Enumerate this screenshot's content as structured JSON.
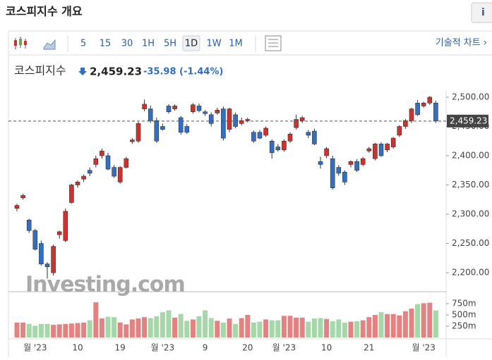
{
  "header": {
    "title": "코스피지수 개요",
    "button": "i"
  },
  "toolbar": {
    "intervals": [
      "5",
      "15",
      "30",
      "1H",
      "5H",
      "1D",
      "1W",
      "1M"
    ],
    "tech_chart": "기술적 차트 ›"
  },
  "quote": {
    "name": "코스피지수",
    "price": "2,459.23",
    "change": "-35.98",
    "change_pct": "(-1.44%)"
  },
  "chart_data": {
    "type": "candlestick",
    "watermark": "Investing.com",
    "up_color": "#d0312d",
    "down_color": "#2f6fc4",
    "vol_up_color": "#e48282",
    "vol_down_color": "#a6d7a8",
    "categories": [
      null,
      null,
      null,
      "월 '23",
      null,
      null,
      null,
      null,
      null,
      null,
      "10",
      null,
      null,
      null,
      null,
      null,
      null,
      "19",
      null,
      null,
      null,
      null,
      null,
      null,
      "월 '23",
      null,
      null,
      null,
      null,
      null,
      null,
      "9",
      null,
      null,
      null,
      null,
      null,
      null,
      "20",
      null,
      null,
      null,
      null,
      null,
      "월 '23",
      null,
      null,
      null,
      null,
      null,
      null,
      "10",
      null,
      null,
      null,
      null,
      null,
      null,
      "21",
      null,
      null,
      null,
      null,
      null,
      null,
      null,
      null,
      "월 '23",
      null,
      null
    ],
    "open": [
      2310,
      2328,
      2290,
      2272,
      2250,
      2215,
      2200,
      2265,
      2255,
      2320,
      2350,
      2360,
      2375,
      2385,
      2400,
      2400,
      2380,
      2355,
      2380,
      2424,
      2425,
      2480,
      2480,
      2460,
      2450,
      2485,
      2480,
      2465,
      2450,
      2475,
      2485,
      2475,
      2470,
      2473,
      2480,
      2445,
      2470,
      2455,
      2460,
      2440,
      2440,
      2435,
      2425,
      2415,
      2410,
      2425,
      2448,
      2460,
      2440,
      2442,
      2390,
      2400,
      2395,
      2380,
      2372,
      2385,
      2390,
      2385,
      2408,
      2395,
      2420,
      2410,
      2415,
      2435,
      2450,
      2460,
      2490,
      2485,
      2490,
      2490
    ],
    "high": [
      2318,
      2335,
      2292,
      2275,
      2255,
      2218,
      2248,
      2272,
      2310,
      2352,
      2358,
      2368,
      2380,
      2400,
      2412,
      2405,
      2384,
      2382,
      2398,
      2430,
      2458,
      2496,
      2486,
      2465,
      2455,
      2488,
      2488,
      2468,
      2454,
      2490,
      2489,
      2478,
      2474,
      2482,
      2484,
      2482,
      2474,
      2465,
      2465,
      2443,
      2444,
      2450,
      2428,
      2420,
      2428,
      2440,
      2470,
      2468,
      2444,
      2446,
      2398,
      2415,
      2400,
      2384,
      2375,
      2392,
      2394,
      2398,
      2415,
      2422,
      2423,
      2422,
      2432,
      2452,
      2463,
      2482,
      2495,
      2492,
      2502,
      2494
    ],
    "low": [
      2305,
      2325,
      2268,
      2238,
      2212,
      2190,
      2195,
      2258,
      2252,
      2318,
      2345,
      2355,
      2365,
      2380,
      2395,
      2375,
      2362,
      2352,
      2378,
      2420,
      2422,
      2476,
      2456,
      2422,
      2443,
      2472,
      2477,
      2436,
      2437,
      2472,
      2474,
      2468,
      2450,
      2470,
      2426,
      2440,
      2447,
      2452,
      2457,
      2422,
      2428,
      2432,
      2395,
      2407,
      2407,
      2422,
      2445,
      2456,
      2430,
      2418,
      2378,
      2396,
      2342,
      2366,
      2350,
      2380,
      2372,
      2382,
      2405,
      2392,
      2398,
      2406,
      2412,
      2432,
      2446,
      2456,
      2468,
      2482,
      2487,
      2456
    ],
    "close": [
      2315,
      2332,
      2272,
      2240,
      2215,
      2210,
      2245,
      2270,
      2305,
      2350,
      2355,
      2365,
      2370,
      2395,
      2408,
      2377,
      2365,
      2380,
      2395,
      2427,
      2455,
      2488,
      2460,
      2425,
      2445,
      2475,
      2485,
      2440,
      2440,
      2487,
      2477,
      2472,
      2455,
      2478,
      2430,
      2480,
      2450,
      2460,
      2462,
      2425,
      2430,
      2447,
      2405,
      2410,
      2425,
      2437,
      2462,
      2465,
      2435,
      2420,
      2385,
      2412,
      2345,
      2370,
      2355,
      2390,
      2375,
      2395,
      2412,
      2420,
      2400,
      2420,
      2430,
      2450,
      2460,
      2480,
      2470,
      2490,
      2500,
      2459.23
    ],
    "volume": [
      330,
      330,
      300,
      260,
      300,
      300,
      280,
      290,
      300,
      310,
      320,
      330,
      380,
      780,
      420,
      460,
      450,
      330,
      290,
      400,
      420,
      450,
      430,
      470,
      560,
      600,
      440,
      520,
      370,
      400,
      470,
      600,
      430,
      370,
      330,
      420,
      300,
      430,
      500,
      330,
      350,
      400,
      380,
      380,
      480,
      480,
      440,
      440,
      350,
      420,
      430,
      410,
      360,
      400,
      330,
      350,
      360,
      380,
      450,
      500,
      560,
      520,
      520,
      490,
      580,
      640,
      740,
      760,
      770,
      600
    ],
    "last": {
      "value": 2459.23,
      "label": "2,459.23"
    },
    "ylim": [
      2170,
      2512
    ],
    "yticks": [
      {
        "value": 2200,
        "label": "2,200.00"
      },
      {
        "value": 2250,
        "label": "2,250.00"
      },
      {
        "value": 2300,
        "label": "2,300.00"
      },
      {
        "value": 2350,
        "label": "2,350.00"
      },
      {
        "value": 2400,
        "label": "2,400.00"
      },
      {
        "value": 2450,
        "label": "2,450.00"
      },
      {
        "value": 2500,
        "label": "2,500.00"
      }
    ],
    "vlim": [
      0,
      1000
    ],
    "vticks": [
      {
        "value": 250,
        "label": "250m"
      },
      {
        "value": 500,
        "label": "500m"
      },
      {
        "value": 750,
        "label": "750m"
      }
    ]
  }
}
